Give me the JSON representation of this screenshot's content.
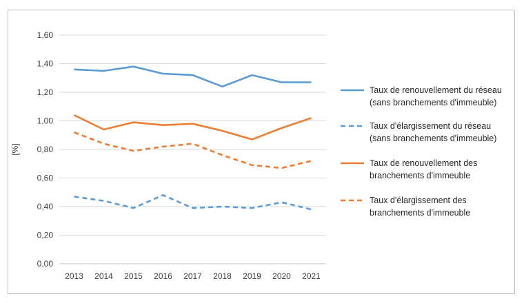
{
  "chart_data": {
    "type": "line",
    "title": "",
    "xlabel": "",
    "ylabel": "[%]",
    "x": [
      "2013",
      "2014",
      "2015",
      "2016",
      "2017",
      "2018",
      "2019",
      "2020",
      "2021"
    ],
    "ylim": [
      0,
      1.6
    ],
    "yticks": [
      "0,00",
      "0,20",
      "0,40",
      "0,60",
      "0,80",
      "1,00",
      "1,20",
      "1,40",
      "1,60"
    ],
    "ytick_values": [
      0,
      0.2,
      0.4,
      0.6,
      0.8,
      1.0,
      1.2,
      1.4,
      1.6
    ],
    "grid": true,
    "legend_position": "right",
    "series": [
      {
        "name_lines": [
          "Taux de renouvellement du réseau",
          "(sans branchements d'immeuble)"
        ],
        "color": "#5b9bd5",
        "dashed": false,
        "values": [
          1.36,
          1.35,
          1.38,
          1.33,
          1.32,
          1.24,
          1.32,
          1.27,
          1.27
        ]
      },
      {
        "name_lines": [
          "Taux d'élargissement du réseau",
          "(sans branchements d'immeuble)"
        ],
        "color": "#5b9bd5",
        "dashed": true,
        "values": [
          0.47,
          0.44,
          0.39,
          0.48,
          0.39,
          0.4,
          0.39,
          0.43,
          0.38
        ]
      },
      {
        "name_lines": [
          "Taux de renouvellement des",
          "branchements d'immeuble"
        ],
        "color": "#ed7d31",
        "dashed": false,
        "values": [
          1.04,
          0.94,
          0.99,
          0.97,
          0.98,
          0.93,
          0.87,
          0.95,
          1.02
        ]
      },
      {
        "name_lines": [
          "Taux d'élargissement des",
          "branchements d'immeuble"
        ],
        "color": "#ed7d31",
        "dashed": true,
        "values": [
          0.92,
          0.84,
          0.79,
          0.82,
          0.84,
          0.76,
          0.69,
          0.67,
          0.72
        ]
      }
    ]
  }
}
